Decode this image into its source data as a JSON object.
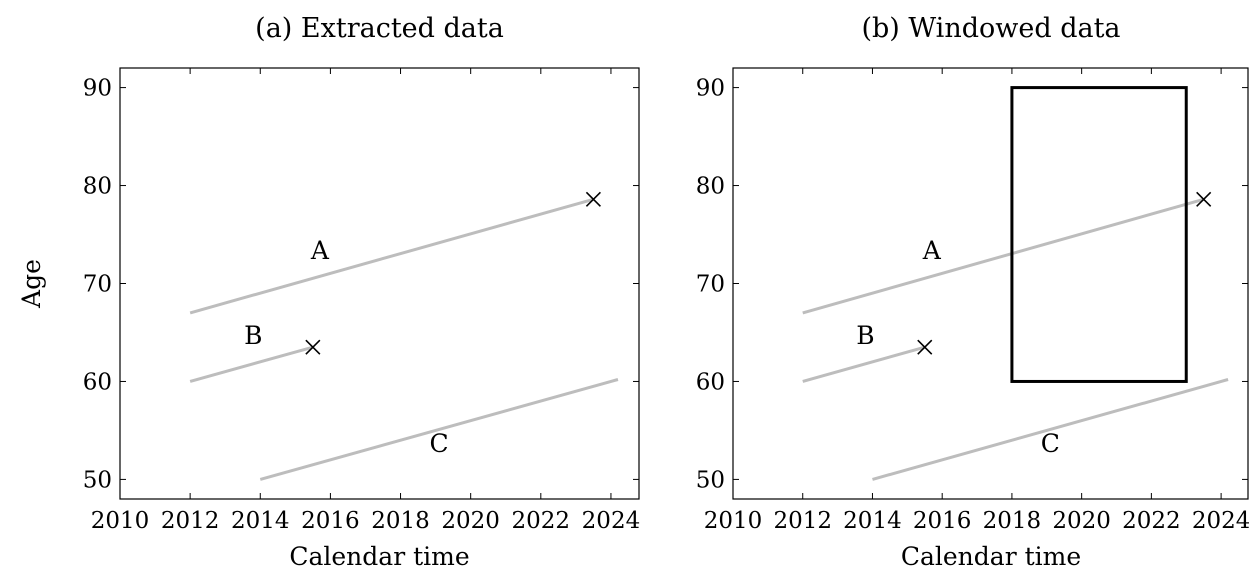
{
  "chart_data": [
    {
      "type": "line",
      "title": "(a) Extracted data",
      "xlabel": "Calendar time",
      "ylabel": "Age",
      "xlim": [
        2010,
        2024.8
      ],
      "ylim": [
        48,
        92
      ],
      "xticks": [
        2010,
        2012,
        2014,
        2016,
        2018,
        2020,
        2022,
        2024
      ],
      "yticks": [
        50,
        60,
        70,
        80,
        90
      ],
      "grid": false,
      "series": [
        {
          "name": "A",
          "x": [
            2012,
            2023.5
          ],
          "y": [
            67,
            78.6
          ],
          "end_marker": "x",
          "label_at": [
            2015.7,
            72.5
          ]
        },
        {
          "name": "B",
          "x": [
            2012,
            2015.5
          ],
          "y": [
            60,
            63.5
          ],
          "end_marker": "x",
          "label_at": [
            2013.8,
            63.8
          ]
        },
        {
          "name": "C",
          "x": [
            2014,
            2024.2
          ],
          "y": [
            50,
            60.2
          ],
          "end_marker": null,
          "label_at": [
            2019.1,
            52.8
          ]
        }
      ],
      "window": null
    },
    {
      "type": "line",
      "title": "(b) Windowed data",
      "xlabel": "Calendar time",
      "ylabel": "",
      "xlim": [
        2010,
        2024.8
      ],
      "ylim": [
        48,
        92
      ],
      "xticks": [
        2010,
        2012,
        2014,
        2016,
        2018,
        2020,
        2022,
        2024
      ],
      "yticks": [
        50,
        60,
        70,
        80,
        90
      ],
      "grid": false,
      "series": [
        {
          "name": "A",
          "x": [
            2012,
            2023.5
          ],
          "y": [
            67,
            78.6
          ],
          "end_marker": "x",
          "label_at": [
            2015.7,
            72.5
          ]
        },
        {
          "name": "B",
          "x": [
            2012,
            2015.5
          ],
          "y": [
            60,
            63.5
          ],
          "end_marker": "x",
          "label_at": [
            2013.8,
            63.8
          ]
        },
        {
          "name": "C",
          "x": [
            2014,
            2024.2
          ],
          "y": [
            50,
            60.2
          ],
          "end_marker": null,
          "label_at": [
            2019.1,
            52.8
          ]
        }
      ],
      "window": {
        "x": [
          2018,
          2023
        ],
        "y": [
          60,
          90
        ]
      }
    }
  ],
  "colors": {
    "line": "#bdbdbd",
    "axis": "#000000",
    "window": "#000000",
    "marker": "#000000"
  }
}
